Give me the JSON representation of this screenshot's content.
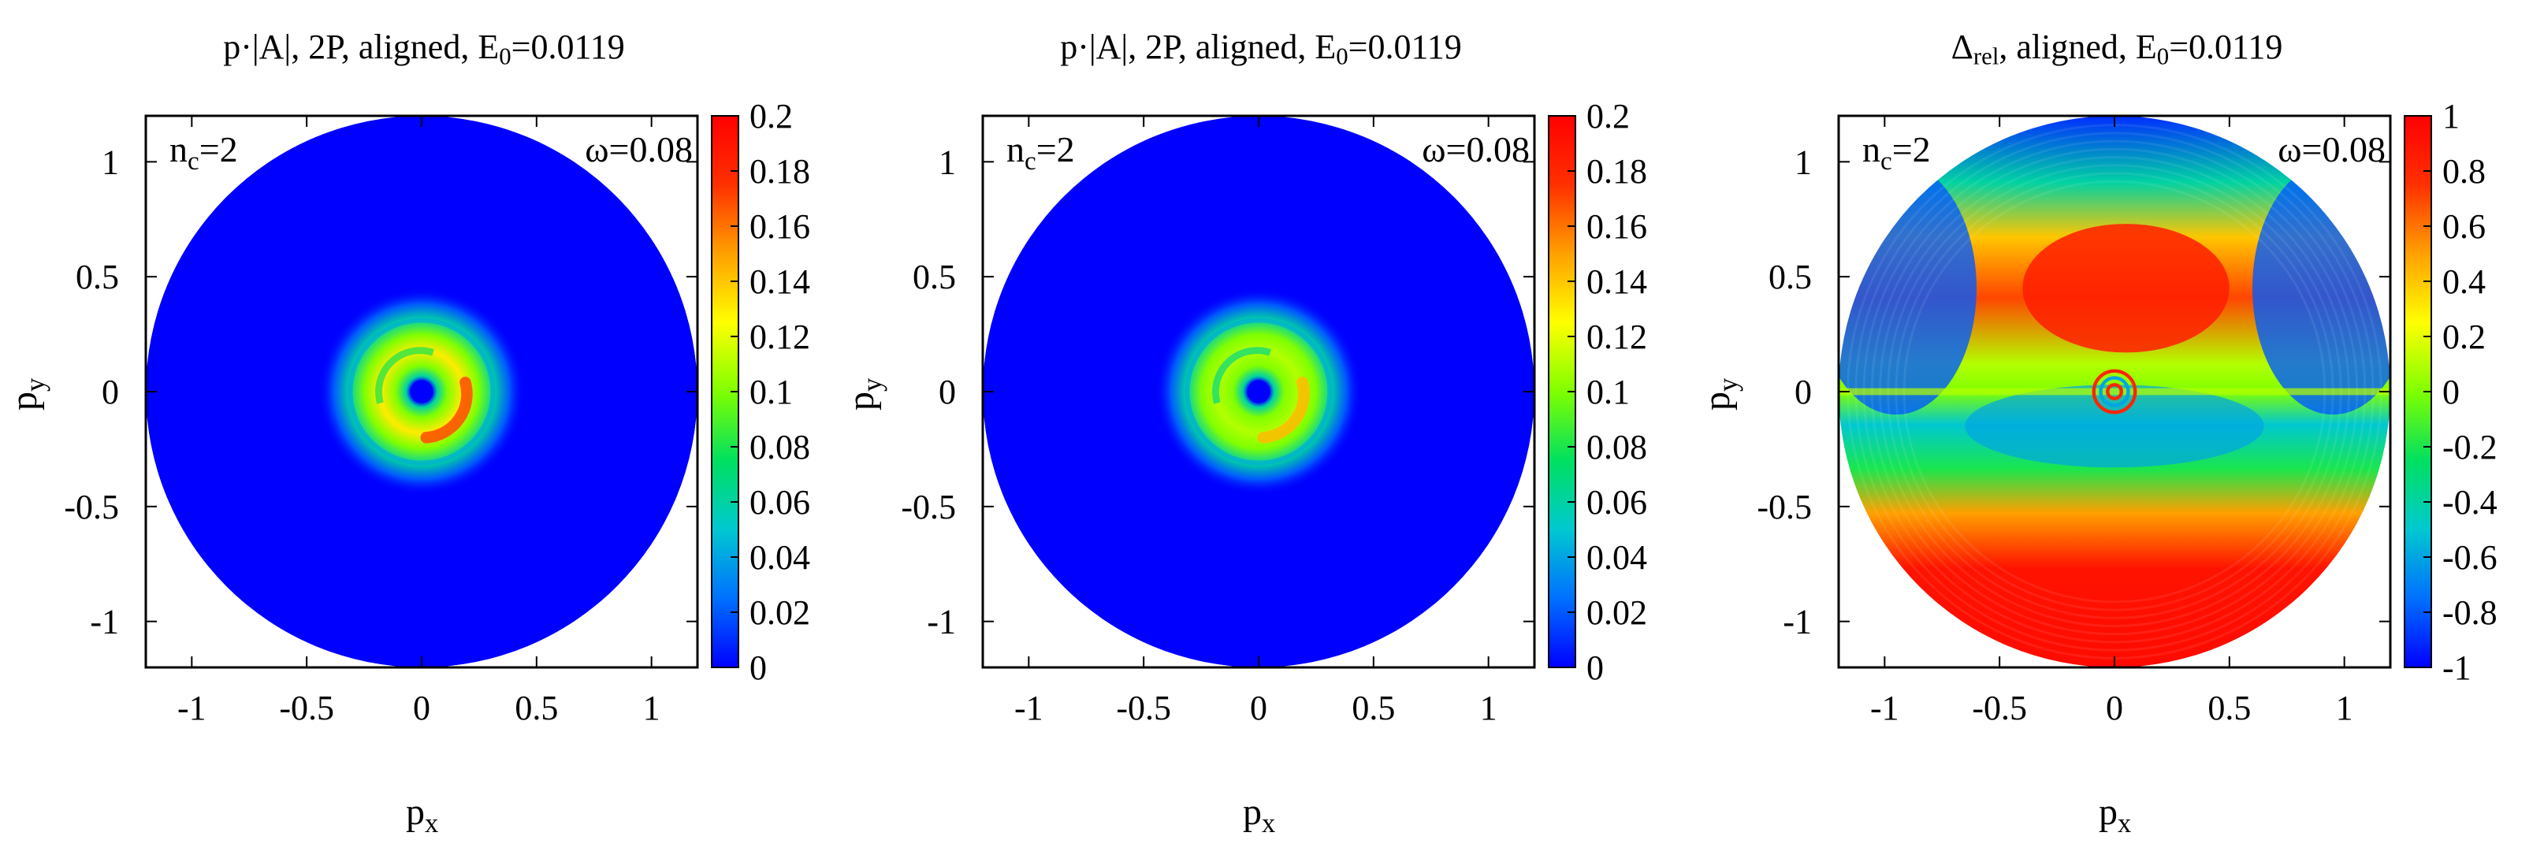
{
  "chart_data": [
    {
      "type": "heatmap",
      "title_main": "p·|A|, 2P, aligned, E",
      "title_sub": "0",
      "title_tail": "=0.0119",
      "xlabel_main": "p",
      "xlabel_sub": "x",
      "ylabel_main": "p",
      "ylabel_sub": "y",
      "xlim": [
        -1.2,
        1.2
      ],
      "ylim": [
        -1.2,
        1.2
      ],
      "xticks": [
        -1,
        -0.5,
        0,
        0.5,
        1
      ],
      "xtick_labels": [
        "-1",
        "-0.5",
        "0",
        "0.5",
        "1"
      ],
      "yticks": [
        -1,
        -0.5,
        0,
        0.5,
        1
      ],
      "ytick_labels": [
        "-1",
        "-0.5",
        "0",
        "0.5",
        "1"
      ],
      "corner_left_main": "n",
      "corner_left_sub": "c",
      "corner_left_tail": "=2",
      "corner_right": "ω=0.08",
      "colorbar": {
        "min": 0,
        "max": 0.2,
        "ticks": [
          0,
          0.02,
          0.04,
          0.06,
          0.08,
          0.1,
          0.12,
          0.14,
          0.16,
          0.18,
          0.2
        ],
        "tick_labels": [
          "0",
          "0.02",
          "0.04",
          "0.06",
          "0.08",
          "0.1",
          "0.12",
          "0.14",
          "0.16",
          "0.18",
          "0.2"
        ]
      },
      "pattern": "ring",
      "disc_radius": 1.2,
      "ring_radius": 0.18,
      "ring_peak": 0.13,
      "hole_radius": 0.05
    },
    {
      "type": "heatmap",
      "title_main": "p·|A|, 2P, aligned, E",
      "title_sub": "0",
      "title_tail": "=0.0119",
      "xlabel_main": "p",
      "xlabel_sub": "x",
      "ylabel_main": "p",
      "ylabel_sub": "y",
      "xlim": [
        -1.2,
        1.2
      ],
      "ylim": [
        -1.2,
        1.2
      ],
      "xticks": [
        -1,
        -0.5,
        0,
        0.5,
        1
      ],
      "xtick_labels": [
        "-1",
        "-0.5",
        "0",
        "0.5",
        "1"
      ],
      "yticks": [
        -1,
        -0.5,
        0,
        0.5,
        1
      ],
      "ytick_labels": [
        "-1",
        "-0.5",
        "0",
        "0.5",
        "1"
      ],
      "corner_left_main": "n",
      "corner_left_sub": "c",
      "corner_left_tail": "=2",
      "corner_right": "ω=0.08",
      "colorbar": {
        "min": 0,
        "max": 0.2,
        "ticks": [
          0,
          0.02,
          0.04,
          0.06,
          0.08,
          0.1,
          0.12,
          0.14,
          0.16,
          0.18,
          0.2
        ],
        "tick_labels": [
          "0",
          "0.02",
          "0.04",
          "0.06",
          "0.08",
          "0.1",
          "0.12",
          "0.14",
          "0.16",
          "0.18",
          "0.2"
        ]
      },
      "pattern": "ring",
      "disc_radius": 1.2,
      "ring_radius": 0.17,
      "ring_peak": 0.11,
      "hole_radius": 0.05
    },
    {
      "type": "heatmap",
      "title_main": "Δ",
      "title_sub": "rel",
      "title_tail": ", aligned,  E",
      "title_sub2": "0",
      "title_tail2": "=0.0119",
      "xlabel_main": "p",
      "xlabel_sub": "x",
      "ylabel_main": "p",
      "ylabel_sub": "y",
      "xlim": [
        -1.2,
        1.2
      ],
      "ylim": [
        -1.2,
        1.2
      ],
      "xticks": [
        -1,
        -0.5,
        0,
        0.5,
        1
      ],
      "xtick_labels": [
        "-1",
        "-0.5",
        "0",
        "0.5",
        "1"
      ],
      "yticks": [
        -1,
        -0.5,
        0,
        0.5,
        1
      ],
      "ytick_labels": [
        "-1",
        "-0.5",
        "0",
        "0.5",
        "1"
      ],
      "corner_left_main": "n",
      "corner_left_sub": "c",
      "corner_left_tail": "=2",
      "corner_right": "ω=0.08",
      "colorbar": {
        "min": -1,
        "max": 1,
        "ticks": [
          -1,
          -0.8,
          -0.6,
          -0.4,
          -0.2,
          0,
          0.2,
          0.4,
          0.6,
          0.8,
          1
        ],
        "tick_labels": [
          "-1",
          "-0.8",
          "-0.6",
          "-0.4",
          "-0.2",
          "0",
          "0.2",
          "0.4",
          "0.6",
          "0.8",
          "1"
        ]
      },
      "pattern": "asymmetry",
      "disc_radius": 1.2
    }
  ],
  "colormap": [
    "#0000ff",
    "#0070ff",
    "#00c8d0",
    "#00e060",
    "#80ff00",
    "#ffff00",
    "#ffa000",
    "#ff3000",
    "#ff0000"
  ]
}
